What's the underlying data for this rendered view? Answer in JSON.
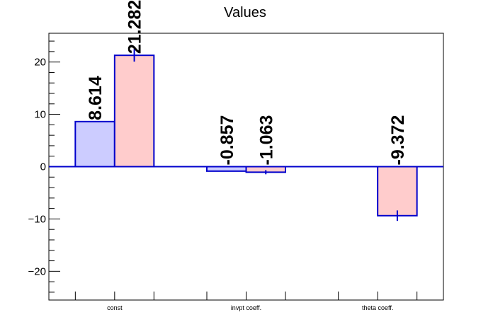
{
  "chart_data": {
    "type": "bar",
    "title": "Values",
    "categories": [
      "const",
      "invpt coeff.",
      "theta coeff."
    ],
    "ylim": [
      -25.5,
      25.5
    ],
    "y_ticks": [
      -20,
      -10,
      0,
      10,
      20
    ],
    "y_tick_labels": [
      "−20",
      "−10",
      "0",
      "10",
      "20"
    ],
    "grid": false,
    "series": [
      {
        "color_fill": "#ccccff",
        "color_edge": "#0000cc",
        "values": [
          8.614,
          -0.857,
          0
        ],
        "labels": [
          "8.614",
          "-0.857",
          ""
        ],
        "errors": [
          0,
          0,
          0
        ]
      },
      {
        "color_fill": "#ffcccc",
        "color_edge": "#0000cc",
        "values": [
          21.282,
          -1.063,
          -9.372
        ],
        "labels": [
          "21.282",
          "-1.063",
          "-9.372"
        ],
        "errors": [
          1.2,
          0.4,
          1.0
        ]
      }
    ],
    "zero_line_color": "#0000cc"
  }
}
